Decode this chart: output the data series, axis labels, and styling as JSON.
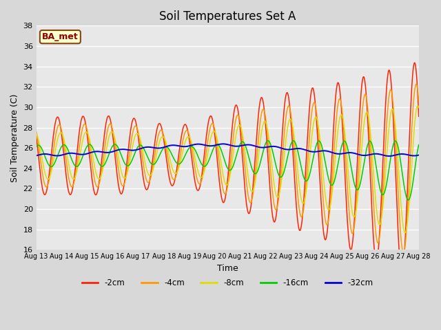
{
  "title": "Soil Temperatures Set A",
  "xlabel": "Time",
  "ylabel": "Soil Temperature (C)",
  "ylim": [
    16,
    38
  ],
  "yticks": [
    16,
    18,
    20,
    22,
    24,
    26,
    28,
    30,
    32,
    34,
    36,
    38
  ],
  "xlim": [
    0,
    360
  ],
  "xtick_positions": [
    0,
    24,
    48,
    72,
    96,
    120,
    144,
    168,
    192,
    216,
    240,
    264,
    288,
    312,
    336,
    360
  ],
  "xtick_labels": [
    "Aug 13",
    "Aug 14",
    "Aug 15",
    "Aug 16",
    "Aug 17",
    "Aug 18",
    "Aug 19",
    "Aug 20",
    "Aug 21",
    "Aug 22",
    "Aug 23",
    "Aug 24",
    "Aug 25",
    "Aug 26",
    "Aug 27",
    "Aug 28"
  ],
  "annotation": "BA_met",
  "annotation_bbox": {
    "facecolor": "#ffffcc",
    "edgecolor": "#8B4513",
    "linewidth": 1.5
  },
  "annotation_color": "#8B0000",
  "colors": {
    "-2cm": "#ff2200",
    "-4cm": "#ff9900",
    "-8cm": "#dddd00",
    "-16cm": "#00cc00",
    "-32cm": "#0000dd"
  },
  "background_color": "#e8e8e8",
  "grid_color": "#ffffff",
  "title_fontsize": 12,
  "figsize": [
    6.4,
    4.8
  ],
  "dpi": 100
}
